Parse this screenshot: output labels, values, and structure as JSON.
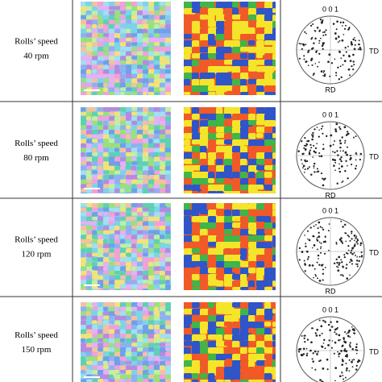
{
  "rows": [
    {
      "label": "Rolls’ speed",
      "speed": "40 rpm",
      "pole_figure": {
        "plane": "0 0 1",
        "td": "TD",
        "rd": "RD"
      }
    },
    {
      "label": "Rolls’ speed",
      "speed": "80 rpm",
      "pole_figure": {
        "plane": "0 0 1",
        "td": "TD",
        "rd": "RD"
      }
    },
    {
      "label": "Rolls’ speed",
      "speed": "120 rpm",
      "pole_figure": {
        "plane": "0 0 1",
        "td": "TD",
        "rd": "RD"
      }
    },
    {
      "label": "Rolls’ speed",
      "speed": "150 rpm",
      "pole_figure": {
        "plane": "0 0 1",
        "td": "TD"
      }
    }
  ]
}
